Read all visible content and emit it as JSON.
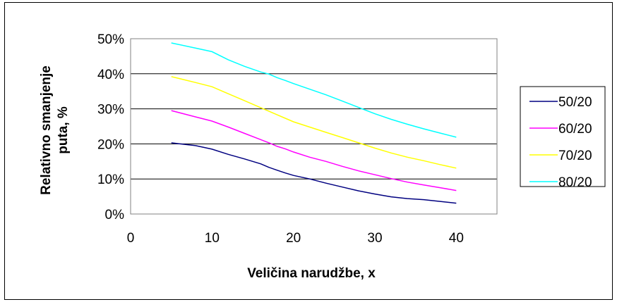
{
  "chart_data": {
    "type": "line",
    "title": "",
    "xlabel": "Veličina narudžbe, x",
    "ylabel_lines": [
      "Relativno smanjenje",
      "puta, %"
    ],
    "xlim": [
      0,
      45
    ],
    "ylim": [
      0,
      0.5
    ],
    "x_ticks": [
      0,
      10,
      20,
      30,
      40
    ],
    "x_tick_labels": [
      "0",
      "10",
      "20",
      "30",
      "40"
    ],
    "y_ticks": [
      0,
      0.1,
      0.2,
      0.3,
      0.4,
      0.5
    ],
    "y_tick_labels": [
      "0%",
      "10%",
      "20%",
      "30%",
      "40%",
      "50%"
    ],
    "grid": "horizontal",
    "legend_position": "right",
    "x": [
      5,
      8,
      10,
      12,
      14,
      16,
      17,
      18,
      19,
      20,
      22,
      24,
      26,
      28,
      30,
      32,
      34,
      36,
      38,
      40
    ],
    "series": [
      {
        "name": "50/20",
        "color": "#000080",
        "values": [
          0.203,
          0.195,
          0.185,
          0.17,
          0.157,
          0.143,
          0.133,
          0.125,
          0.117,
          0.11,
          0.1,
          0.088,
          0.077,
          0.066,
          0.057,
          0.049,
          0.044,
          0.041,
          0.036,
          0.031
        ]
      },
      {
        "name": "60/20",
        "color": "#ff00ff",
        "values": [
          0.295,
          0.277,
          0.265,
          0.248,
          0.23,
          0.212,
          0.203,
          0.193,
          0.186,
          0.177,
          0.162,
          0.15,
          0.136,
          0.123,
          0.112,
          0.101,
          0.091,
          0.083,
          0.075,
          0.067
        ]
      },
      {
        "name": "70/20",
        "color": "#ffff00",
        "values": [
          0.392,
          0.375,
          0.363,
          0.343,
          0.323,
          0.303,
          0.293,
          0.283,
          0.273,
          0.263,
          0.248,
          0.233,
          0.218,
          0.203,
          0.188,
          0.174,
          0.162,
          0.152,
          0.141,
          0.131
        ]
      },
      {
        "name": "80/20",
        "color": "#00ffff",
        "values": [
          0.488,
          0.473,
          0.463,
          0.44,
          0.421,
          0.405,
          0.399,
          0.389,
          0.381,
          0.372,
          0.356,
          0.34,
          0.322,
          0.304,
          0.286,
          0.27,
          0.256,
          0.243,
          0.231,
          0.219
        ]
      }
    ]
  }
}
